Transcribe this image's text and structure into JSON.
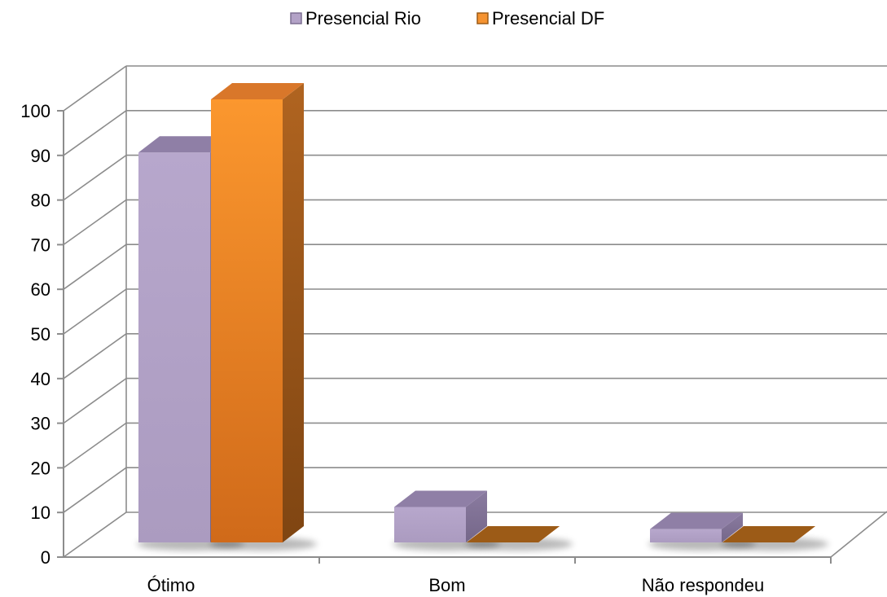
{
  "chart_data": {
    "type": "bar",
    "subtype": "3d-clustered-column",
    "categories": [
      "Ótimo",
      "Bom",
      "Não respondeu"
    ],
    "series": [
      {
        "name": "Presencial Rio",
        "color": "#b3a2c7",
        "side_color": "#7d6f92",
        "top_color": "#8f7fa6",
        "values": [
          88,
          8,
          3
        ]
      },
      {
        "name": "Presencial DF",
        "color": "#f59331",
        "side_color": "#9c5b17",
        "top_color": "#d9772a",
        "values": [
          100,
          0,
          0
        ]
      }
    ],
    "ylim": [
      0,
      100
    ],
    "yticks": [
      0,
      10,
      20,
      30,
      40,
      50,
      60,
      70,
      80,
      90,
      100
    ],
    "grid": true,
    "legend": "top-center",
    "title": "",
    "xlabel": "",
    "ylabel": ""
  }
}
